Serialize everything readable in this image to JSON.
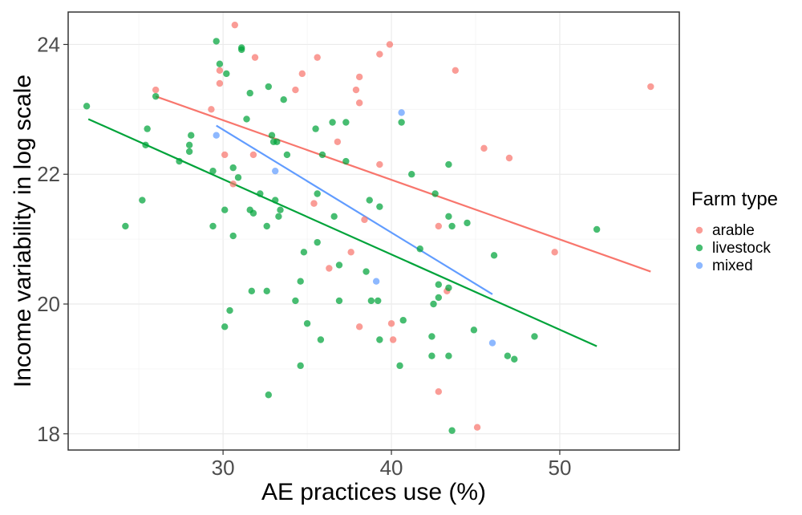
{
  "chart_data": {
    "type": "scatter",
    "xlabel": "AE practices use (%)",
    "ylabel": "Income variability in log scale",
    "xlim": [
      20.8,
      57.1
    ],
    "ylim": [
      17.75,
      24.5
    ],
    "xticks": [
      30,
      40,
      50
    ],
    "yticks": [
      18,
      20,
      22,
      24
    ],
    "xtick_labels": [
      "30",
      "40",
      "50"
    ],
    "ytick_labels": [
      "18",
      "20",
      "22",
      "24"
    ],
    "grid": true,
    "legend": {
      "title": "Farm type",
      "placement": "right",
      "entries": [
        "arable",
        "livestock",
        "mixed"
      ]
    },
    "colors": {
      "arable": "#F8766D",
      "livestock": "#00A33A",
      "mixed": "#619CFF"
    },
    "series": [
      {
        "name": "arable",
        "color": "#F8766D",
        "points": [
          [
            30.7,
            24.3
          ],
          [
            29.8,
            23.6
          ],
          [
            31.9,
            23.8
          ],
          [
            29.8,
            23.4
          ],
          [
            29.3,
            23.0
          ],
          [
            26.0,
            23.3
          ],
          [
            34.7,
            23.55
          ],
          [
            35.6,
            23.8
          ],
          [
            34.3,
            23.3
          ],
          [
            38.1,
            23.5
          ],
          [
            37.9,
            23.3
          ],
          [
            39.3,
            23.85
          ],
          [
            39.9,
            24.0
          ],
          [
            43.8,
            23.6
          ],
          [
            55.4,
            23.35
          ],
          [
            38.1,
            23.1
          ],
          [
            36.8,
            22.5
          ],
          [
            31.8,
            22.3
          ],
          [
            30.1,
            22.3
          ],
          [
            39.3,
            22.15
          ],
          [
            45.5,
            22.4
          ],
          [
            47.0,
            22.25
          ],
          [
            30.6,
            21.85
          ],
          [
            35.4,
            21.55
          ],
          [
            38.4,
            21.3
          ],
          [
            42.8,
            21.2
          ],
          [
            37.6,
            20.8
          ],
          [
            49.7,
            20.8
          ],
          [
            36.3,
            20.55
          ],
          [
            43.3,
            20.2
          ],
          [
            38.1,
            19.65
          ],
          [
            40.0,
            19.7
          ],
          [
            40.1,
            19.45
          ],
          [
            42.8,
            18.65
          ],
          [
            45.1,
            18.1
          ]
        ],
        "trend": [
          [
            26.0,
            23.2
          ],
          [
            55.4,
            20.5
          ]
        ]
      },
      {
        "name": "livestock",
        "color": "#00A33A",
        "points": [
          [
            29.6,
            24.05
          ],
          [
            31.1,
            23.95
          ],
          [
            31.1,
            23.92
          ],
          [
            29.8,
            23.7
          ],
          [
            30.2,
            23.55
          ],
          [
            26.0,
            23.2
          ],
          [
            21.9,
            23.05
          ],
          [
            31.6,
            23.25
          ],
          [
            32.7,
            23.35
          ],
          [
            33.6,
            23.15
          ],
          [
            25.5,
            22.7
          ],
          [
            25.4,
            22.45
          ],
          [
            28.1,
            22.6
          ],
          [
            28.0,
            22.45
          ],
          [
            28.0,
            22.35
          ],
          [
            27.4,
            22.2
          ],
          [
            31.4,
            22.85
          ],
          [
            32.9,
            22.6
          ],
          [
            33.0,
            22.5
          ],
          [
            33.2,
            22.5
          ],
          [
            33.8,
            22.3
          ],
          [
            35.5,
            22.7
          ],
          [
            36.5,
            22.8
          ],
          [
            37.3,
            22.8
          ],
          [
            35.9,
            22.3
          ],
          [
            37.3,
            22.2
          ],
          [
            40.6,
            22.8
          ],
          [
            29.4,
            22.05
          ],
          [
            30.6,
            22.1
          ],
          [
            30.9,
            21.95
          ],
          [
            32.2,
            21.7
          ],
          [
            33.1,
            21.6
          ],
          [
            33.4,
            21.45
          ],
          [
            33.3,
            21.35
          ],
          [
            35.6,
            21.7
          ],
          [
            36.6,
            21.35
          ],
          [
            38.7,
            21.6
          ],
          [
            39.3,
            21.5
          ],
          [
            41.2,
            22.0
          ],
          [
            42.6,
            21.7
          ],
          [
            43.4,
            22.15
          ],
          [
            43.4,
            21.35
          ],
          [
            43.6,
            21.2
          ],
          [
            44.5,
            21.25
          ],
          [
            52.2,
            21.15
          ],
          [
            25.2,
            21.6
          ],
          [
            24.2,
            21.2
          ],
          [
            29.4,
            21.2
          ],
          [
            30.1,
            21.45
          ],
          [
            31.6,
            21.45
          ],
          [
            31.8,
            21.4
          ],
          [
            32.6,
            21.2
          ],
          [
            30.6,
            21.05
          ],
          [
            35.6,
            20.95
          ],
          [
            34.8,
            20.8
          ],
          [
            36.9,
            20.6
          ],
          [
            38.5,
            20.5
          ],
          [
            41.7,
            20.85
          ],
          [
            46.1,
            20.75
          ],
          [
            42.8,
            20.3
          ],
          [
            43.4,
            20.25
          ],
          [
            42.8,
            20.1
          ],
          [
            42.5,
            20.0
          ],
          [
            34.6,
            20.35
          ],
          [
            31.7,
            20.2
          ],
          [
            32.6,
            20.2
          ],
          [
            34.3,
            20.05
          ],
          [
            36.9,
            20.05
          ],
          [
            38.8,
            20.05
          ],
          [
            39.2,
            20.05
          ],
          [
            30.4,
            19.9
          ],
          [
            30.1,
            19.65
          ],
          [
            35.0,
            19.7
          ],
          [
            35.8,
            19.45
          ],
          [
            39.3,
            19.45
          ],
          [
            40.7,
            19.75
          ],
          [
            42.4,
            19.5
          ],
          [
            44.9,
            19.6
          ],
          [
            48.5,
            19.5
          ],
          [
            42.4,
            19.2
          ],
          [
            43.4,
            19.2
          ],
          [
            46.9,
            19.2
          ],
          [
            47.3,
            19.15
          ],
          [
            34.6,
            19.05
          ],
          [
            40.5,
            19.05
          ],
          [
            32.7,
            18.6
          ],
          [
            43.6,
            18.05
          ]
        ],
        "trend": [
          [
            22.0,
            22.85
          ],
          [
            52.2,
            19.35
          ]
        ]
      },
      {
        "name": "mixed",
        "color": "#619CFF",
        "points": [
          [
            40.6,
            22.95
          ],
          [
            29.6,
            22.6
          ],
          [
            33.1,
            22.05
          ],
          [
            39.1,
            20.35
          ],
          [
            46.0,
            19.4
          ]
        ],
        "trend": [
          [
            29.6,
            22.75
          ],
          [
            46.0,
            20.15
          ]
        ]
      }
    ]
  }
}
